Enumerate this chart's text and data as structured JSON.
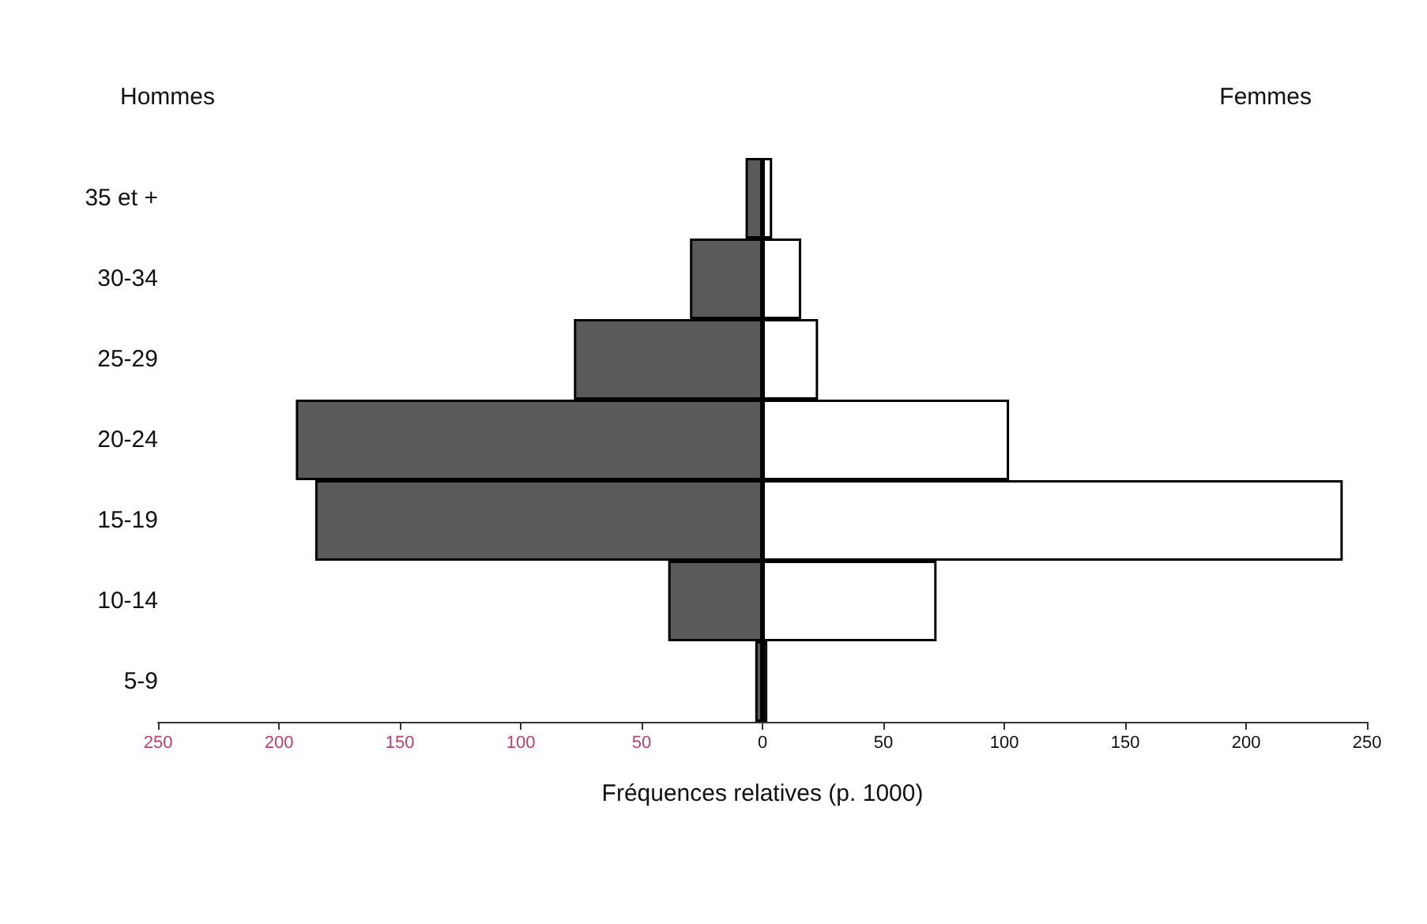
{
  "chart_data": {
    "type": "bar",
    "orientation": "horizontal",
    "xlabel": "Fréquences relatives (p. 1000)",
    "annotations": [
      "Hommes",
      "Femmes"
    ],
    "categories": [
      "35 et +",
      "30-34",
      "25-29",
      "20-24",
      "15-19",
      "10-14",
      "5-9"
    ],
    "series": [
      {
        "color": "#5a5a5a",
        "values": [
          -7,
          -30,
          -78,
          -193,
          -185,
          -39,
          -3
        ]
      },
      {
        "color": "#ffffff",
        "values": [
          4,
          16,
          23,
          102,
          240,
          72,
          2
        ]
      }
    ],
    "xlim": [
      -250,
      250
    ],
    "xticks": [
      {
        "value": -250,
        "label": "250"
      },
      {
        "value": -200,
        "label": "200"
      },
      {
        "value": -150,
        "label": "150"
      },
      {
        "value": -100,
        "label": "100"
      },
      {
        "value": -50,
        "label": "50"
      },
      0,
      50,
      100,
      150,
      200,
      250
    ],
    "stacked": true,
    "grid": false
  }
}
